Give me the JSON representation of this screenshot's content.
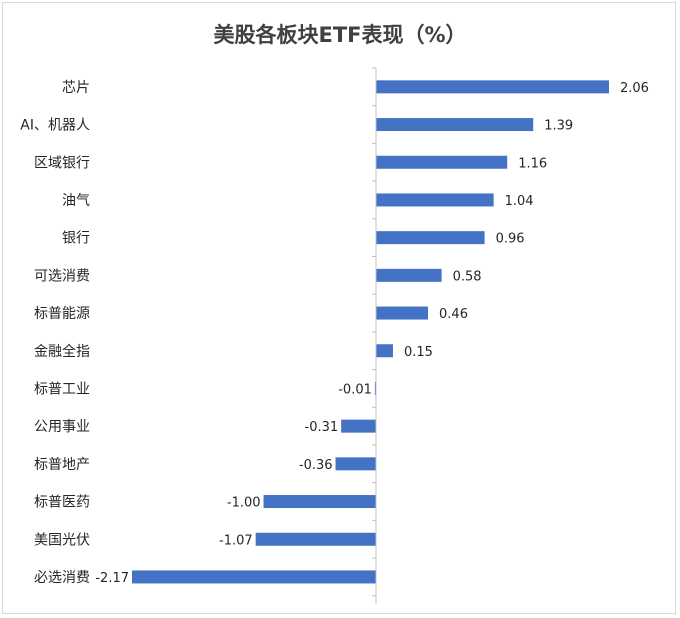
{
  "chart_data": {
    "type": "bar",
    "orientation": "horizontal",
    "title": "美股各板块ETF表现（%）",
    "categories": [
      "芯片",
      "AI、机器人",
      "区域银行",
      "油气",
      "银行",
      "可选消费",
      "标普能源",
      "金融全指",
      "标普工业",
      "公用事业",
      "标普地产",
      "标普医药",
      "美国光伏",
      "必选消费"
    ],
    "values": [
      2.06,
      1.39,
      1.16,
      1.04,
      0.96,
      0.58,
      0.46,
      0.15,
      -0.01,
      -0.31,
      -0.36,
      -1.0,
      -1.07,
      -2.17
    ],
    "value_labels": [
      "2.06",
      "1.39",
      "1.16",
      "1.04",
      "0.96",
      "0.58",
      "0.46",
      "0.15",
      "-0.01",
      "-0.31",
      "-0.36",
      "-1.00",
      "-1.07",
      "-2.17"
    ],
    "xlim": [
      -2.17,
      2.06
    ],
    "bar_color": "#4472c4",
    "grid": false,
    "legend": false
  }
}
